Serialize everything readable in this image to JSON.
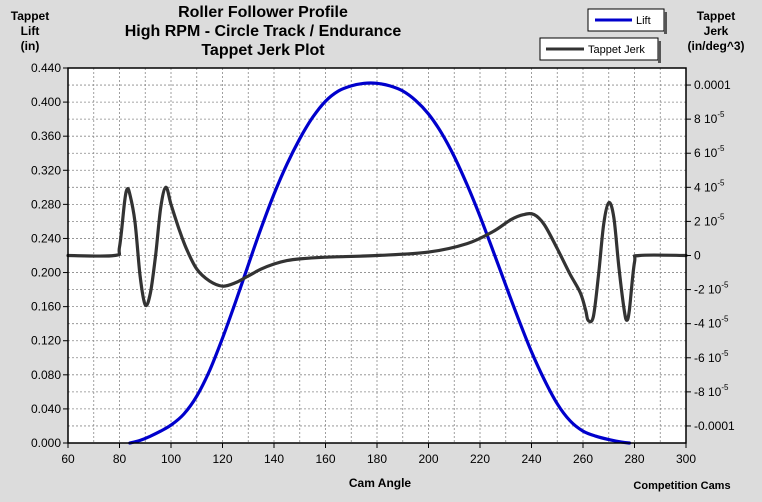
{
  "chart_data": {
    "type": "line",
    "title_lines": [
      "Roller Follower Profile",
      "High RPM - Circle Track / Endurance",
      "Tappet Jerk Plot"
    ],
    "left_axis_label": [
      "Tappet",
      "Lift",
      "(in)"
    ],
    "right_axis_label": [
      "Tappet",
      "Jerk",
      "(in/deg^3)"
    ],
    "xlabel": "Cam Angle",
    "footer": "Competition Cams",
    "xlim": [
      60,
      300
    ],
    "ylim_left": [
      0,
      0.44
    ],
    "ylim_right": [
      -0.00011,
      0.00011
    ],
    "x_ticks": [
      "60",
      "80",
      "100",
      "120",
      "140",
      "160",
      "180",
      "200",
      "220",
      "240",
      "260",
      "280",
      "300"
    ],
    "x_tick_values": [
      60,
      80,
      100,
      120,
      140,
      160,
      180,
      200,
      220,
      240,
      260,
      280,
      300
    ],
    "left_ticks": [
      "0.000",
      "0.040",
      "0.080",
      "0.120",
      "0.160",
      "0.200",
      "0.240",
      "0.280",
      "0.320",
      "0.360",
      "0.400",
      "0.440"
    ],
    "left_tick_values": [
      0,
      0.04,
      0.08,
      0.12,
      0.16,
      0.2,
      0.24,
      0.28,
      0.32,
      0.36,
      0.4,
      0.44
    ],
    "right_ticks": [
      {
        "value": 0.0001,
        "base": "0.0001",
        "exp": ""
      },
      {
        "value": 8e-05,
        "base": "8 10",
        "exp": "-5"
      },
      {
        "value": 6e-05,
        "base": "6 10",
        "exp": "-5"
      },
      {
        "value": 4e-05,
        "base": "4 10",
        "exp": "-5"
      },
      {
        "value": 2e-05,
        "base": "2 10",
        "exp": "-5"
      },
      {
        "value": 0,
        "base": "0",
        "exp": ""
      },
      {
        "value": -2e-05,
        "base": "-2 10",
        "exp": "-5"
      },
      {
        "value": -4e-05,
        "base": "-4 10",
        "exp": "-5"
      },
      {
        "value": -6e-05,
        "base": "-6 10",
        "exp": "-5"
      },
      {
        "value": -8e-05,
        "base": "-8 10",
        "exp": "-5"
      },
      {
        "value": -0.0001,
        "base": "-0.0001",
        "exp": ""
      }
    ],
    "series": [
      {
        "name": "Lift",
        "axis": "left",
        "color": "#0000cc",
        "points": [
          [
            84,
            0
          ],
          [
            88,
            0.003
          ],
          [
            92,
            0.008
          ],
          [
            96,
            0.014
          ],
          [
            100,
            0.021
          ],
          [
            105,
            0.034
          ],
          [
            110,
            0.055
          ],
          [
            115,
            0.085
          ],
          [
            120,
            0.123
          ],
          [
            125,
            0.165
          ],
          [
            130,
            0.209
          ],
          [
            135,
            0.252
          ],
          [
            140,
            0.292
          ],
          [
            145,
            0.327
          ],
          [
            150,
            0.357
          ],
          [
            155,
            0.382
          ],
          [
            160,
            0.401
          ],
          [
            165,
            0.413
          ],
          [
            170,
            0.419
          ],
          [
            175,
            0.422
          ],
          [
            180,
            0.422
          ],
          [
            185,
            0.419
          ],
          [
            190,
            0.413
          ],
          [
            195,
            0.402
          ],
          [
            200,
            0.386
          ],
          [
            205,
            0.364
          ],
          [
            210,
            0.336
          ],
          [
            215,
            0.303
          ],
          [
            220,
            0.266
          ],
          [
            225,
            0.226
          ],
          [
            230,
            0.185
          ],
          [
            235,
            0.145
          ],
          [
            240,
            0.107
          ],
          [
            245,
            0.074
          ],
          [
            250,
            0.046
          ],
          [
            255,
            0.026
          ],
          [
            260,
            0.014
          ],
          [
            265,
            0.008
          ],
          [
            270,
            0.004
          ],
          [
            275,
            0.001
          ],
          [
            278,
            0
          ]
        ]
      },
      {
        "name": "Tappet Jerk",
        "axis": "right",
        "color": "#333333",
        "points": [
          [
            60,
            0
          ],
          [
            78,
            0
          ],
          [
            80,
            5e-06
          ],
          [
            82,
            3.2e-05
          ],
          [
            83,
            3.9e-05
          ],
          [
            84,
            3.6e-05
          ],
          [
            86,
            2e-05
          ],
          [
            88,
            -1.2e-05
          ],
          [
            90,
            -2.9e-05
          ],
          [
            92,
            -2.2e-05
          ],
          [
            94,
            0
          ],
          [
            96,
            2.8e-05
          ],
          [
            98,
            4e-05
          ],
          [
            100,
            3e-05
          ],
          [
            103,
            1.6e-05
          ],
          [
            106,
            4e-06
          ],
          [
            110,
            -8e-06
          ],
          [
            115,
            -1.5e-05
          ],
          [
            120,
            -1.8e-05
          ],
          [
            125,
            -1.6e-05
          ],
          [
            130,
            -1.2e-05
          ],
          [
            135,
            -8e-06
          ],
          [
            140,
            -5e-06
          ],
          [
            145,
            -3e-06
          ],
          [
            150,
            -2e-06
          ],
          [
            160,
            -1e-06
          ],
          [
            180,
            0
          ],
          [
            200,
            2e-06
          ],
          [
            215,
            7e-06
          ],
          [
            225,
            1.4e-05
          ],
          [
            232,
            2.1e-05
          ],
          [
            237,
            2.4e-05
          ],
          [
            241,
            2.4e-05
          ],
          [
            245,
            1.8e-05
          ],
          [
            250,
            4e-06
          ],
          [
            255,
            -1.1e-05
          ],
          [
            259,
            -2.2e-05
          ],
          [
            261,
            -3.2e-05
          ],
          [
            262,
            -3.8e-05
          ],
          [
            264,
            -3.6e-05
          ],
          [
            266,
            -1.2e-05
          ],
          [
            268,
            1.8e-05
          ],
          [
            270,
            3.1e-05
          ],
          [
            272,
            2.2e-05
          ],
          [
            274,
            -8e-06
          ],
          [
            276,
            -3.2e-05
          ],
          [
            277,
            -3.8e-05
          ],
          [
            278,
            -3.2e-05
          ],
          [
            280,
            -4e-06
          ],
          [
            282,
            0
          ],
          [
            300,
            0
          ]
        ]
      }
    ],
    "legend": [
      {
        "label": "Lift",
        "color": "#0000cc"
      },
      {
        "label": "Tappet Jerk",
        "color": "#333333"
      }
    ]
  }
}
